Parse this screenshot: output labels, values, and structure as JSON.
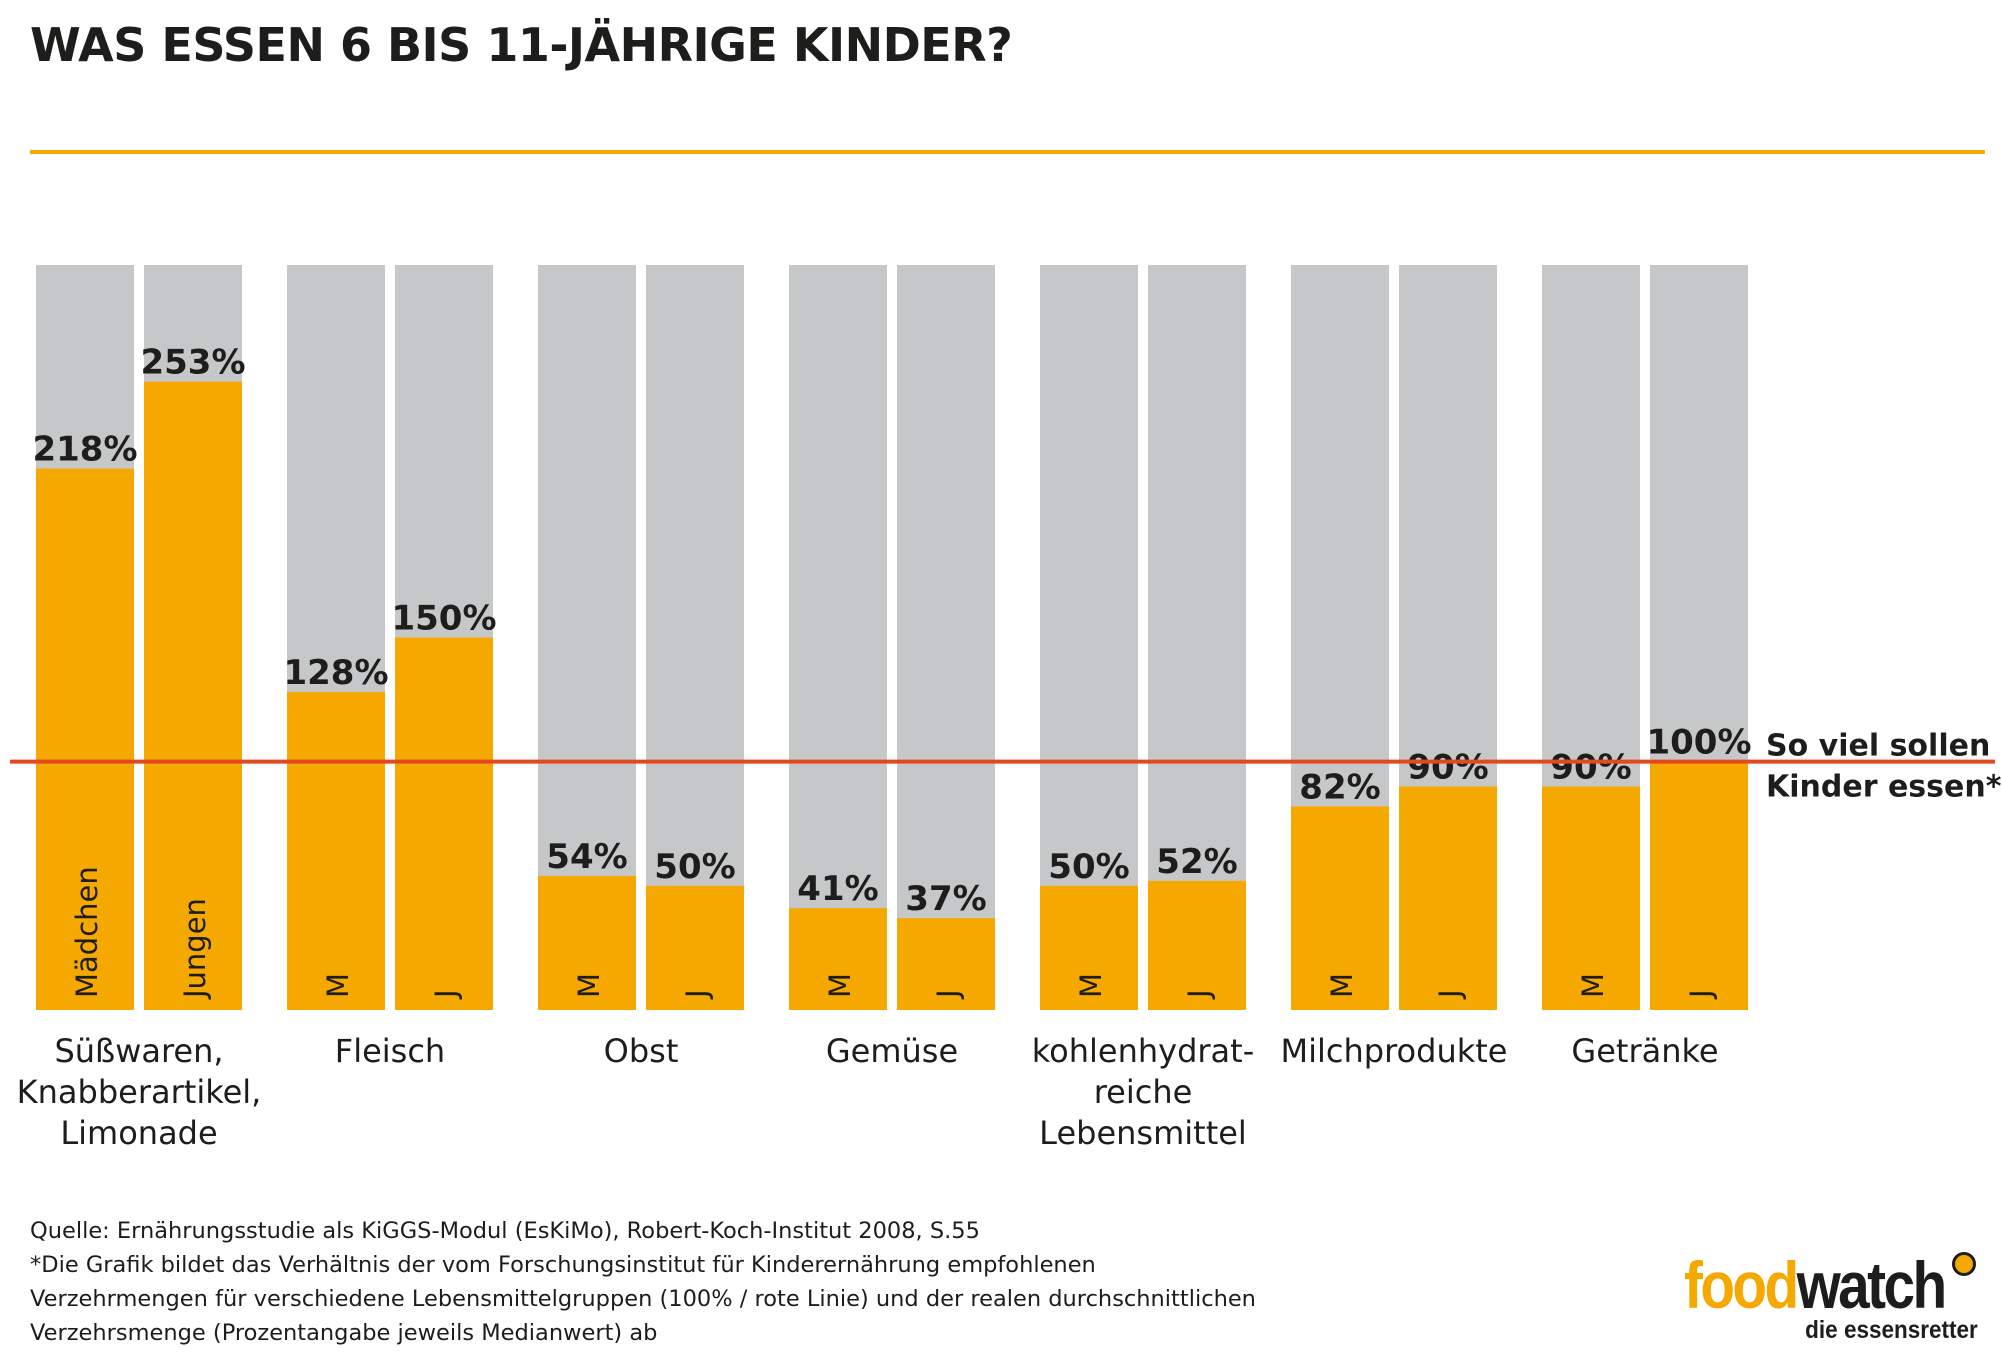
{
  "title": "WAS ESSEN 6 BIS 11-JÄHRIGE KINDER?",
  "colors": {
    "accent": "#f5a800",
    "background_bar": "#c6c7c9",
    "reference_line": "#e4481e",
    "text": "#1d1d1b"
  },
  "chart_data": {
    "type": "bar",
    "unit": "%",
    "title": "WAS ESSEN 6 BIS 11-JÄHRIGE KINDER?",
    "ylim": [
      0,
      300
    ],
    "reference_line": {
      "value": 100,
      "label_lines": [
        "So viel sollen",
        "Kinder essen*"
      ]
    },
    "categories": [
      {
        "label_lines": [
          "Süßwaren,",
          "Knabberartikel,",
          "Limonade"
        ],
        "bars": [
          {
            "label": "Mädchen",
            "value": 218
          },
          {
            "label": "Jungen",
            "value": 253
          }
        ]
      },
      {
        "label_lines": [
          "Fleisch"
        ],
        "bars": [
          {
            "label": "M",
            "value": 128
          },
          {
            "label": "J",
            "value": 150
          }
        ]
      },
      {
        "label_lines": [
          "Obst"
        ],
        "bars": [
          {
            "label": "M",
            "value": 54
          },
          {
            "label": "J",
            "value": 50
          }
        ]
      },
      {
        "label_lines": [
          "Gemüse"
        ],
        "bars": [
          {
            "label": "M",
            "value": 41
          },
          {
            "label": "J",
            "value": 37
          }
        ]
      },
      {
        "label_lines": [
          "kohlenhydrat-",
          "reiche",
          "Lebensmittel"
        ],
        "bars": [
          {
            "label": "M",
            "value": 50
          },
          {
            "label": "J",
            "value": 52
          }
        ]
      },
      {
        "label_lines": [
          "Milchprodukte"
        ],
        "bars": [
          {
            "label": "M",
            "value": 82
          },
          {
            "label": "J",
            "value": 90
          }
        ]
      },
      {
        "label_lines": [
          "Getränke"
        ],
        "bars": [
          {
            "label": "M",
            "value": 90
          },
          {
            "label": "J",
            "value": 100
          }
        ]
      }
    ]
  },
  "footnote": {
    "source": "Quelle: Ernährungsstudie als KiGGS-Modul (EsKiMo), Robert-Koch-Institut 2008, S.55",
    "note_lines": [
      "*Die Grafik bildet das Verhältnis der vom Forschungsinstitut für Kinderernährung empfohlenen",
      "Verzehrmengen für verschiedene Lebensmittelgruppen (100% / rote Linie) und der realen durchschnittlichen",
      "Verzehrsmenge (Prozentangabe jeweils Medianwert) ab"
    ]
  },
  "logo": {
    "word_food": "food",
    "word_watch": "watch",
    "tagline": "die essensretter"
  }
}
